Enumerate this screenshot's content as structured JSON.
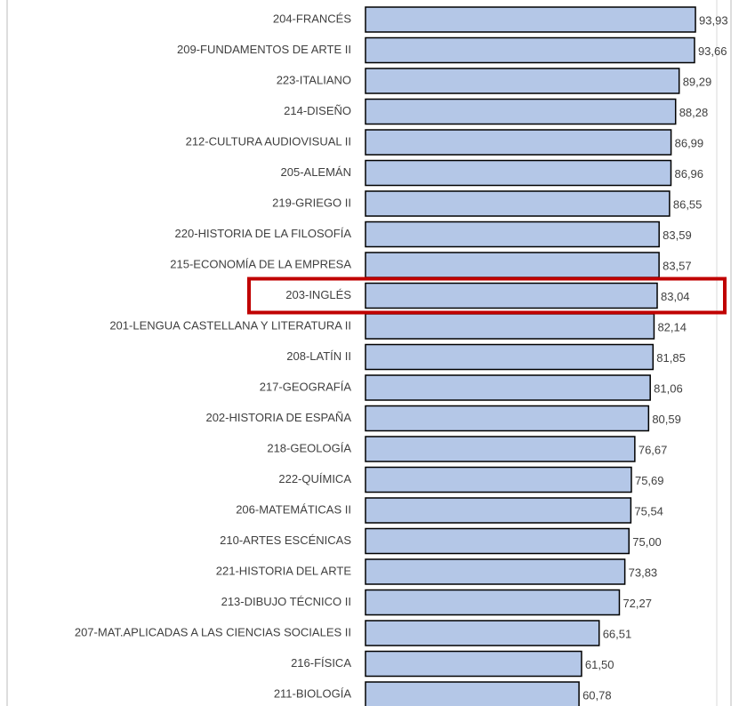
{
  "chart_data": {
    "type": "bar",
    "orientation": "horizontal",
    "categories": [
      "204-FRANCÉS",
      "209-FUNDAMENTOS DE ARTE II",
      "223-ITALIANO",
      "214-DISEÑO",
      "212-CULTURA AUDIOVISUAL II",
      "205-ALEMÁN",
      "219-GRIEGO II",
      "220-HISTORIA DE LA FILOSOFÍA",
      "215-ECONOMÍA DE LA EMPRESA",
      "203-INGLÉS",
      "201-LENGUA CASTELLANA Y LITERATURA II",
      "208-LATÍN II",
      "217-GEOGRAFÍA",
      "202-HISTORIA DE ESPAÑA",
      "218-GEOLOGÍA",
      "222-QUÍMICA",
      "206-MATEMÁTICAS II",
      "210-ARTES ESCÉNICAS",
      "221-HISTORIA DEL ARTE",
      "213-DIBUJO TÉCNICO II",
      "207-MAT.APLICADAS A LAS CIENCIAS SOCIALES II",
      "216-FÍSICA",
      "211-BIOLOGÍA"
    ],
    "values": [
      93.93,
      93.66,
      89.29,
      88.28,
      86.99,
      86.96,
      86.55,
      83.59,
      83.57,
      83.04,
      82.14,
      81.85,
      81.06,
      80.59,
      76.67,
      75.69,
      75.54,
      75.0,
      73.83,
      72.27,
      66.51,
      61.5,
      60.78
    ],
    "value_labels": [
      "93,93",
      "93,66",
      "89,29",
      "88,28",
      "86,99",
      "86,96",
      "86,55",
      "83,59",
      "83,57",
      "83,04",
      "82,14",
      "81,85",
      "81,06",
      "80,59",
      "76,67",
      "75,69",
      "75,54",
      "75,00",
      "73,83",
      "72,27",
      "66,51",
      "61,50",
      "60,78"
    ],
    "color": "#b4c7e7",
    "xlim": [
      0,
      100
    ],
    "highlight": 9
  }
}
